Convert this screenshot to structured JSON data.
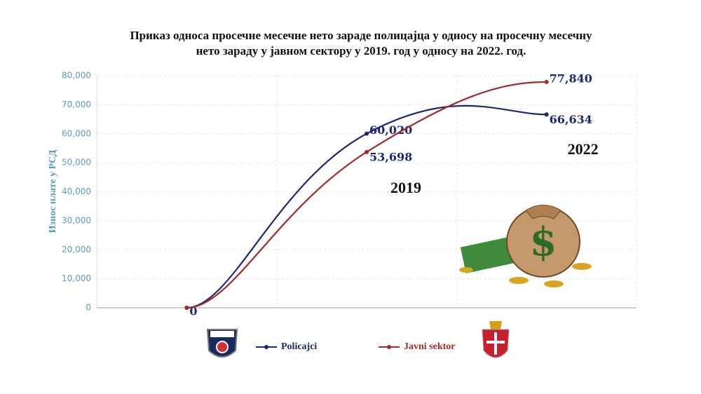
{
  "chart_data": {
    "type": "line",
    "title": "Приказ односа просечне месечне нето зараде полицајца у односу на просечну месечну нето зараду у јавном сектору у 2019. год у односу на 2022. год.",
    "y_label": "Износ плате у РСД",
    "categories": [
      null,
      "2019",
      "2022"
    ],
    "series": [
      {
        "name": "Policajci",
        "color": "#1f2674",
        "values": [
          0,
          60020,
          66634
        ],
        "value_labels": [
          "0",
          "60,020",
          "66,634"
        ]
      },
      {
        "name": "Javni sektor",
        "color": "#a12b2b",
        "values": [
          0,
          53698,
          77840
        ],
        "value_labels": [
          null,
          "53,698",
          "77,840"
        ]
      }
    ],
    "ylim": [
      0,
      80000
    ],
    "yticks": [
      0,
      {
        "value": 10000,
        "label": "10,000"
      },
      {
        "value": 20000,
        "label": "20,000"
      },
      {
        "value": 30000,
        "label": "30,000"
      },
      {
        "value": 40000,
        "label": "40,000"
      },
      {
        "value": 50000,
        "label": "50,000"
      },
      {
        "value": 60000,
        "label": "60,000"
      },
      {
        "value": 70000,
        "label": "70,000"
      },
      {
        "value": 80000,
        "label": "80,000"
      }
    ],
    "grid": true
  }
}
